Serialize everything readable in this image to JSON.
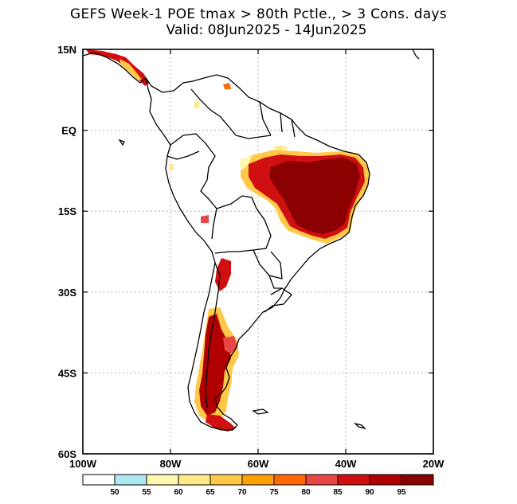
{
  "title": {
    "line1": "GEFS Week-1 POE tmax > 80th Pctle., > 3 Cons. days",
    "line2": "Valid: 08Jun2025 - 14Jun2025"
  },
  "map": {
    "region": "South America",
    "lon_range": [
      -100,
      -20
    ],
    "lat_range": [
      -60,
      15
    ],
    "y_ticks": [
      {
        "lat": 15,
        "label": "15N"
      },
      {
        "lat": 0,
        "label": "EQ"
      },
      {
        "lat": -15,
        "label": "15S"
      },
      {
        "lat": -30,
        "label": "30S"
      },
      {
        "lat": -45,
        "label": "45S"
      },
      {
        "lat": -60,
        "label": "60S"
      }
    ],
    "x_ticks": [
      {
        "lon": -100,
        "label": "100W"
      },
      {
        "lon": -80,
        "label": "80W"
      },
      {
        "lon": -60,
        "label": "60W"
      },
      {
        "lon": -40,
        "label": "40W"
      },
      {
        "lon": -20,
        "label": "20W"
      }
    ],
    "grid": "dotted"
  },
  "colorbar": {
    "boundaries": [
      "50",
      "55",
      "60",
      "65",
      "70",
      "75",
      "80",
      "85",
      "90",
      "95"
    ],
    "colors": [
      "#ffffff",
      "#aee8f0",
      "#fff8b0",
      "#ffe98a",
      "#ffc846",
      "#ffa000",
      "#ff6a00",
      "#e84545",
      "#d01010",
      "#b00000",
      "#8b0000"
    ]
  }
}
